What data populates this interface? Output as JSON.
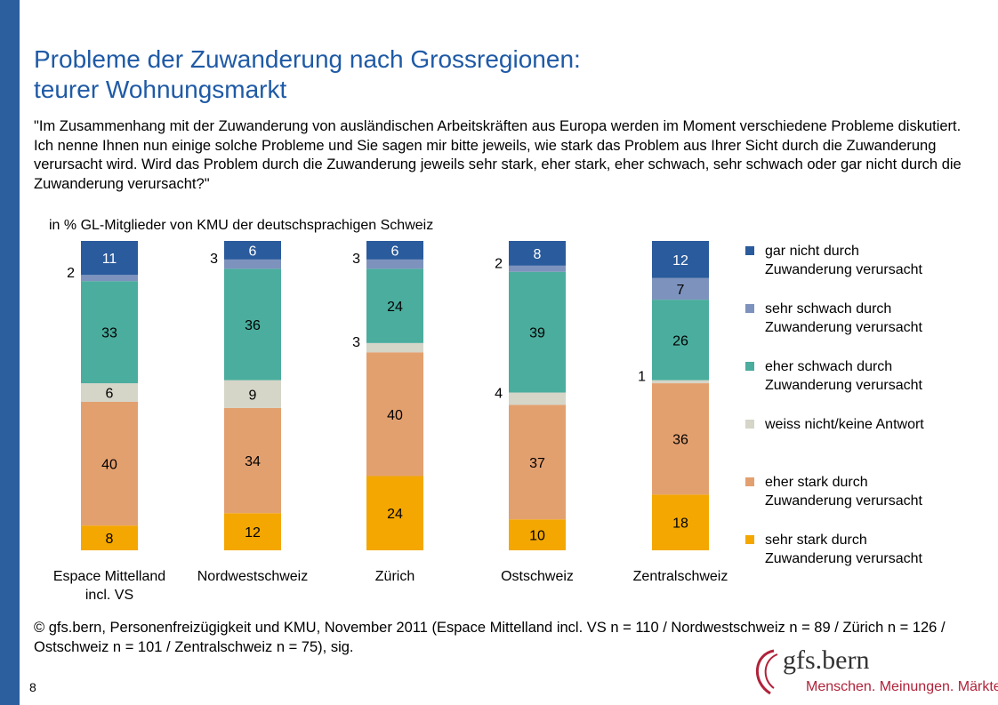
{
  "title_line1": "Probleme der Zuwanderung nach Grossregionen:",
  "title_line2": "teurer Wohnungsmarkt",
  "question": "\"Im Zusammenhang mit der Zuwanderung von ausländischen Arbeitskräften aus Europa werden im Moment verschiedene Probleme diskutiert. Ich nenne Ihnen nun einige solche Probleme und Sie sagen mir bitte jeweils, wie stark das Problem aus Ihrer Sicht durch die Zuwanderung verursacht wird. Wird das Problem durch die Zuwanderung jeweils sehr stark, eher stark, eher schwach, sehr schwach oder gar nicht durch die Zuwanderung verursacht?\"",
  "subtitle": "in % GL-Mitglieder von KMU der deutschsprachigen Schweiz",
  "source": "© gfs.bern, Personenfreizügigkeit und KMU, November 2011 (Espace Mittelland incl. VS n = 110 / Nordwestschweiz n = 89 / Zürich n = 126 / Ostschweiz n = 101 / Zentralschweiz n = 75), sig.",
  "page_number": "8",
  "logo": {
    "name": "gfs.bern",
    "tagline": "Menschen. Meinungen. Märkte."
  },
  "colors": {
    "gar_nicht": "#2a5b9c",
    "sehr_schwach": "#7d93bd",
    "eher_schwach": "#4aad9d",
    "weiss_nicht": "#d5d5c8",
    "eher_stark": "#e3a06f",
    "sehr_stark": "#f4a700"
  },
  "chart_data": {
    "type": "bar",
    "stacked": true,
    "orientation": "vertical",
    "unit": "%",
    "categories": [
      "Espace Mittelland\nincl. VS",
      "Nordwestschweiz",
      "Zürich",
      "Ostschweiz",
      "Zentralschweiz"
    ],
    "series": [
      {
        "name": "sehr stark durch\nZuwanderung verursacht",
        "color": "#f4a700",
        "values": [
          8,
          12,
          24,
          10,
          18
        ]
      },
      {
        "name": "eher stark durch\nZuwanderung verursacht",
        "color": "#e3a06f",
        "values": [
          40,
          34,
          40,
          37,
          36
        ]
      },
      {
        "name": "weiss nicht/keine Antwort",
        "color": "#d5d5c8",
        "values": [
          6,
          9,
          3,
          4,
          1
        ]
      },
      {
        "name": "eher schwach durch\nZuwanderung verursacht",
        "color": "#4aad9d",
        "values": [
          33,
          36,
          24,
          39,
          26
        ]
      },
      {
        "name": "sehr schwach durch\nZuwanderung verursacht",
        "color": "#7d93bd",
        "values": [
          2,
          3,
          3,
          2,
          7
        ]
      },
      {
        "name": "gar nicht durch\nZuwanderung verursacht",
        "color": "#2a5b9c",
        "values": [
          11,
          6,
          6,
          8,
          12
        ]
      }
    ],
    "legend": [
      "gar nicht durch\nZuwanderung verursacht",
      "sehr schwach durch\nZuwanderung verursacht",
      "eher schwach durch\nZuwanderung verursacht",
      "weiss nicht/keine Antwort",
      "eher stark durch\nZuwanderung verursacht",
      "sehr stark durch\nZuwanderung verursacht"
    ],
    "legend_position": "right",
    "ylim": [
      0,
      100
    ],
    "grid": false
  }
}
